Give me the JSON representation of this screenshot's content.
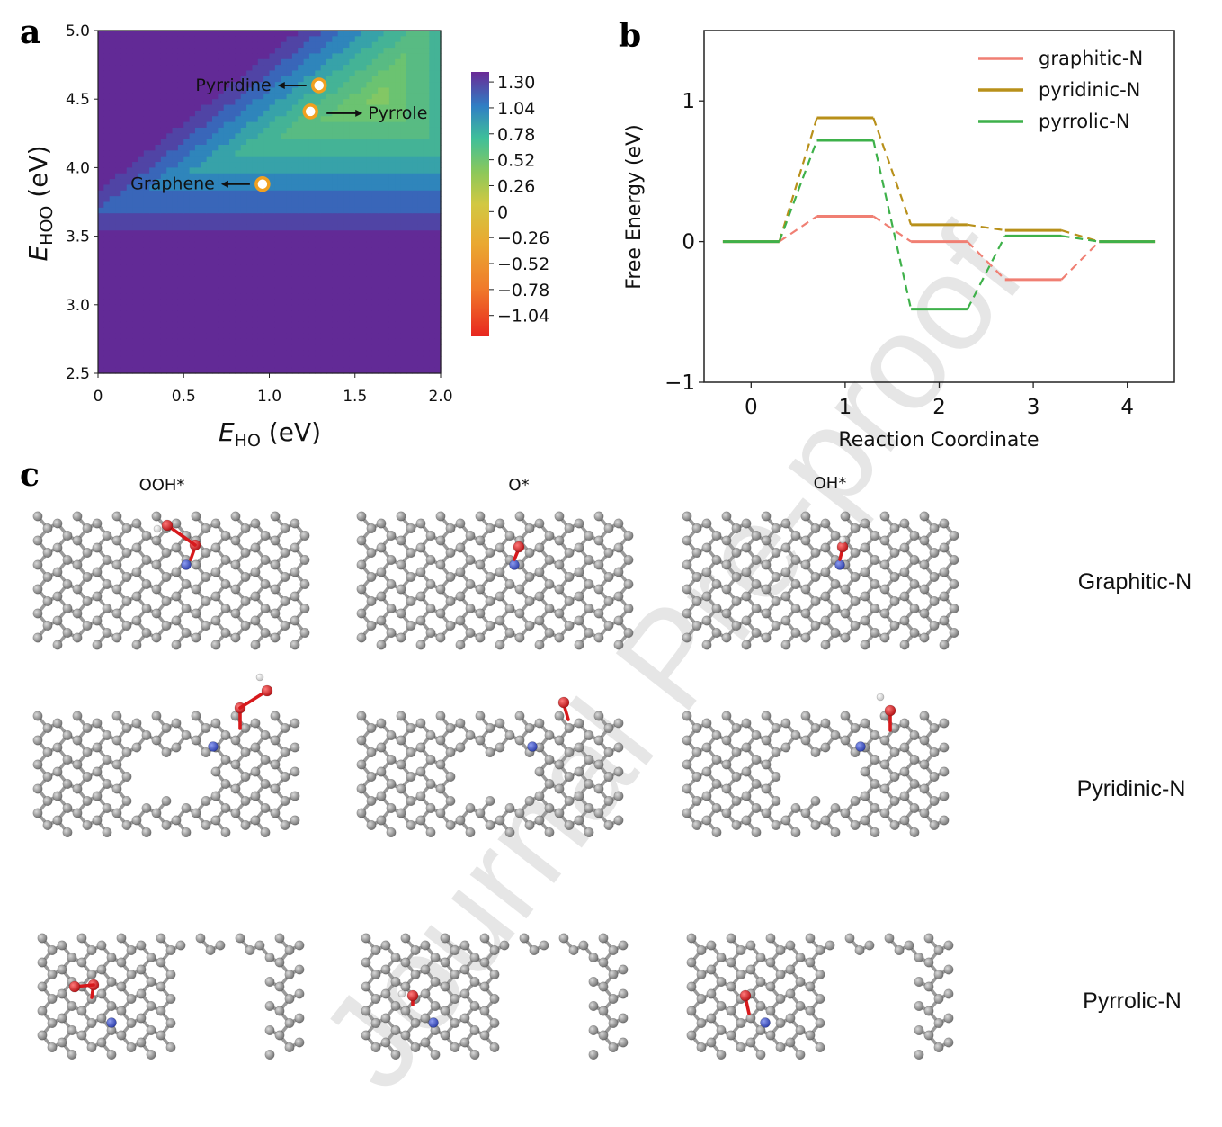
{
  "chart_data": [
    {
      "panel": "a",
      "type": "heatmap",
      "xlabel_main": "E",
      "xlabel_sub": "HO",
      "xlabel_unit": " (eV)",
      "ylabel_main": "E",
      "ylabel_sub": "HOO",
      "ylabel_unit": " (eV)",
      "xlim": [
        0,
        2.0
      ],
      "ylim": [
        2.5,
        5.0
      ],
      "x_ticks": [
        "0",
        "0.5",
        "1.0",
        "1.5",
        "2.0"
      ],
      "x_tick_values": [
        0,
        0.5,
        1.0,
        1.5,
        2.0
      ],
      "y_ticks": [
        "2.5",
        "3.0",
        "3.5",
        "4.0",
        "4.5",
        "5.0"
      ],
      "y_tick_values": [
        2.5,
        3.0,
        3.5,
        4.0,
        4.5,
        5.0
      ],
      "colorbar_ticks": [
        "1.30",
        "1.04",
        "0.78",
        "0.52",
        "0.26",
        "0",
        "−0.26",
        "−0.52",
        "−0.78",
        "−1.04"
      ],
      "colorbar_range": [
        -1.25,
        1.4
      ],
      "colors": {
        "low": "#e8261f",
        "mid_low": "#f3a22d",
        "mid": "#d2c842",
        "mid_high": "#8cc85a",
        "high": "#2f9bbf",
        "top": "#5a2ea0"
      },
      "points": [
        {
          "label": "Pyrridine",
          "x": 1.29,
          "y": 4.6,
          "side": "left"
        },
        {
          "label": "Pyrrole",
          "x": 1.24,
          "y": 4.41,
          "side": "right"
        },
        {
          "label": "Graphene",
          "x": 0.96,
          "y": 3.88,
          "side": "left"
        }
      ]
    },
    {
      "panel": "b",
      "type": "line",
      "xlabel": "Reaction Coordinate",
      "ylabel": "Free Energy (eV)",
      "xlim": [
        -0.5,
        4.5
      ],
      "ylim": [
        -1.0,
        1.5
      ],
      "x_ticks": [
        "0",
        "1",
        "2",
        "3",
        "4"
      ],
      "x_tick_values": [
        0,
        1,
        2,
        3,
        4
      ],
      "y_ticks": [
        "1",
        "0",
        "−1"
      ],
      "y_tick_values": [
        1,
        0,
        -1
      ],
      "legend_position": "top-right",
      "series": [
        {
          "name": "graphitic-N",
          "color": "#f07f73",
          "values": [
            0,
            0.18,
            0.0,
            -0.27,
            0
          ]
        },
        {
          "name": "pyridinic-N",
          "color": "#b8901a",
          "values": [
            0,
            0.88,
            0.12,
            0.08,
            0
          ]
        },
        {
          "name": "pyrrolic-N",
          "color": "#3eb14a",
          "values": [
            0,
            0.72,
            -0.48,
            0.04,
            0
          ]
        }
      ]
    }
  ],
  "panels": {
    "a": "a",
    "b": "b",
    "c": "c"
  },
  "panel_c": {
    "columns": [
      "OOH*",
      "O*",
      "OH*"
    ],
    "rows": [
      "Graphitic-N",
      "Pyridinic-N",
      "Pyrrolic-N"
    ],
    "atom_colors": {
      "carbon": "#8a8a8a",
      "nitrogen": "#3b52c4",
      "oxygen": "#d7191c",
      "hydrogen": "#eeeeee"
    }
  },
  "watermark": "Journal Pre-proof"
}
